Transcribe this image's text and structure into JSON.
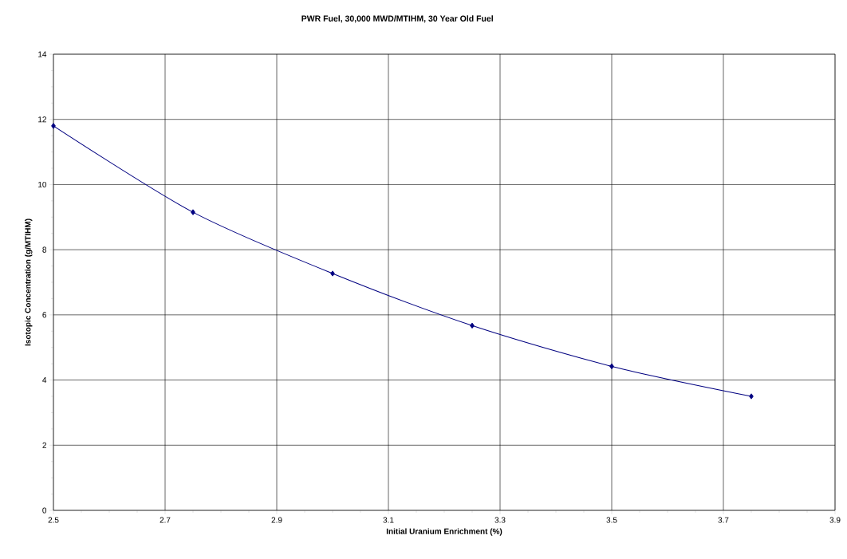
{
  "chart_data": {
    "type": "line",
    "title": "PWR Fuel, 30,000 MWD/MTIHM, 30 Year Old Fuel",
    "xlabel": "Initial Uranium Enrichment (%)",
    "ylabel": "Isotopic Concentration (g/MTIHM)",
    "x": [
      2.5,
      2.75,
      3.0,
      3.25,
      3.5,
      3.75
    ],
    "series": [
      {
        "color": "#000080",
        "values": [
          11.8,
          9.15,
          7.27,
          5.67,
          4.42,
          3.5
        ]
      }
    ],
    "xlim": [
      2.5,
      3.9
    ],
    "ylim": [
      0,
      14
    ],
    "xticks": [
      2.5,
      2.7,
      2.9,
      3.1,
      3.3,
      3.5,
      3.7,
      3.9
    ],
    "yticks": [
      0,
      2,
      4,
      6,
      8,
      10,
      12,
      14
    ],
    "grid": true,
    "marker": "diamond",
    "line_style": "solid"
  }
}
